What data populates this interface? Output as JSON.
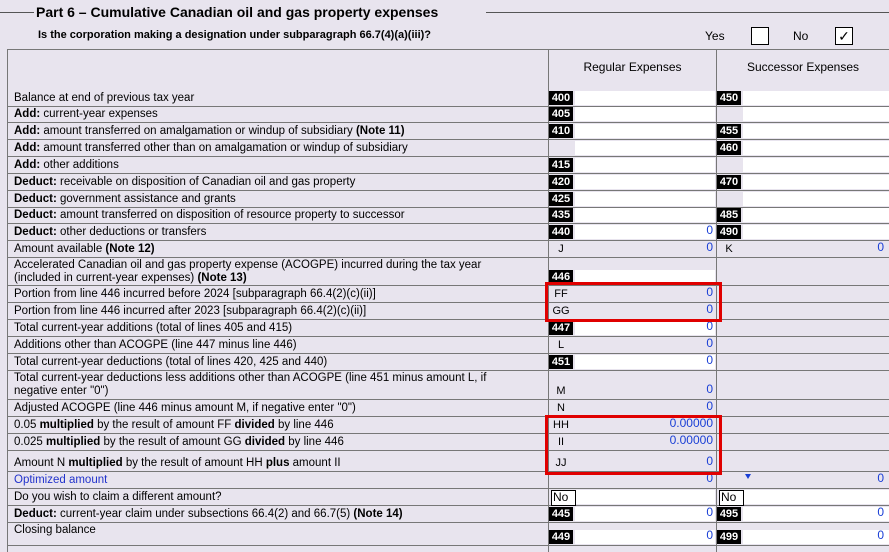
{
  "part_title": "Part 6 – Cumulative Canadian oil and gas property expenses",
  "designation": {
    "question": "Is the corporation making a designation under subparagraph 66.7(4)(a)(iii)?",
    "yes_label": "Yes",
    "no_label": "No",
    "no_checked": "✓"
  },
  "columns": {
    "regular": "Regular Expenses",
    "successor": "Successor Expenses"
  },
  "rows": [
    {
      "bold": "",
      "text": "Balance at end of previous tax year",
      "note": "",
      "reg_line": "400",
      "suc_line": "450",
      "reg_val": "",
      "suc_val": ""
    },
    {
      "bold": "Add:",
      "text": " current-year expenses",
      "note": "",
      "reg_line": "405",
      "suc_line": "",
      "reg_val": "",
      "suc_val": ""
    },
    {
      "bold": "Add:",
      "text": " amount transferred on amalgamation or windup of subsidiary ",
      "note": "(Note 11)",
      "reg_line": "410",
      "suc_line": "455",
      "reg_val": "",
      "suc_val": ""
    },
    {
      "bold": "Add:",
      "text": " amount transferred other than on amalgamation or windup of subsidiary",
      "note": "",
      "reg_line": "",
      "suc_line": "460",
      "reg_val": "",
      "suc_val": ""
    },
    {
      "bold": "Add:",
      "text": " other additions",
      "note": "",
      "reg_line": "415",
      "suc_line": "",
      "reg_val": "",
      "suc_val": ""
    },
    {
      "bold": "Deduct:",
      "text": " receivable on disposition of Canadian oil and gas property",
      "note": "",
      "reg_line": "420",
      "suc_line": "470",
      "reg_val": "",
      "suc_val": ""
    },
    {
      "bold": "Deduct:",
      "text": " government assistance and grants",
      "note": "",
      "reg_line": "425",
      "suc_line": "",
      "reg_val": "",
      "suc_val": ""
    },
    {
      "bold": "Deduct:",
      "text": " amount transferred on disposition of resource property to successor",
      "note": "",
      "reg_line": "435",
      "suc_line": "485",
      "reg_val": "",
      "suc_val": ""
    },
    {
      "bold": "Deduct:",
      "text": " other deductions or transfers",
      "note": "",
      "reg_line": "440",
      "suc_line": "490",
      "reg_val": "0",
      "suc_val": ""
    },
    {
      "bold": "",
      "text": "Amount available ",
      "note": "(Note 12)",
      "reg_letter": "J",
      "suc_letter": "K",
      "reg_val": "0",
      "suc_val": "0"
    },
    {
      "bold": "",
      "text": "Accelerated Canadian oil and gas property expense (ACOGPE) incurred during the tax year",
      "text2": "(included in current-year expenses) ",
      "note": "(Note 13)",
      "reg_line": "446",
      "reg_val": "",
      "suc_val": ""
    },
    {
      "bold": "",
      "text": "Portion from line 446 incurred before 2024 [subparagraph 66.4(2)(c)(ii)]",
      "note": "",
      "reg_letter": "FF",
      "reg_val": "0"
    },
    {
      "bold": "",
      "text": "Portion from line 446 incurred after 2023 [subparagraph 66.4(2)(c)(ii)]",
      "note": "",
      "reg_letter": "GG",
      "reg_val": "0"
    },
    {
      "bold": "",
      "text": "Total current-year additions (total of lines 405 and 415)",
      "note": "",
      "reg_line": "447",
      "reg_val": "0"
    },
    {
      "bold": "",
      "text": "Additions other than ACOGPE (line 447 minus line 446)",
      "note": "",
      "reg_letter": "L",
      "reg_val": "0"
    },
    {
      "bold": "",
      "text": "Total current-year deductions (total of lines 420, 425 and 440)",
      "note": "",
      "reg_line": "451",
      "reg_val": "0"
    },
    {
      "bold": "",
      "text": "Total current-year deductions less additions other than ACOGPE (line 451 minus amount L, if",
      "text2": "negative enter \"0\")",
      "note": "",
      "reg_letter": "M",
      "reg_val": "0"
    },
    {
      "bold": "",
      "text": "Adjusted ACOGPE (line 446 minus amount M, if negative enter \"0\")",
      "note": "",
      "reg_letter": "N",
      "reg_val": "0"
    },
    {
      "pre": "0.05 ",
      "bold": "multiplied",
      "text": " by the result of amount FF ",
      "bold2": "divided",
      "text3": " by line 446",
      "note": "",
      "reg_letter": "HH",
      "reg_val": "0.00000"
    },
    {
      "pre": "0.025 ",
      "bold": "multiplied",
      "text": " by the result of amount GG ",
      "bold2": "divided",
      "text3": " by line 446",
      "note": "",
      "reg_letter": "II",
      "reg_val": "0.00000"
    },
    {
      "pre": "Amount N ",
      "bold": "multiplied",
      "text": " by the result of amount HH ",
      "bold2": "plus",
      "text3": " amount II",
      "note": "",
      "reg_letter": "JJ",
      "reg_val": "0"
    },
    {
      "bold": "",
      "text": "Optimized amount",
      "note": "",
      "reg_val": "0",
      "suc_val": "0"
    },
    {
      "bold": "",
      "text": "Do you wish to claim a different amount?",
      "note": "",
      "reg_sel": "No",
      "suc_sel": "No"
    },
    {
      "bold": "Deduct:",
      "text": " current-year claim under subsections 66.4(2) and 66.7(5) ",
      "note": "(Note 14)",
      "reg_line": "445",
      "suc_line": "495",
      "reg_val": "0",
      "suc_val": "0"
    },
    {
      "bold": "",
      "text": "Closing balance",
      "note": "",
      "reg_line": "449",
      "suc_line": "499",
      "reg_val": "0",
      "suc_val": "0"
    }
  ]
}
